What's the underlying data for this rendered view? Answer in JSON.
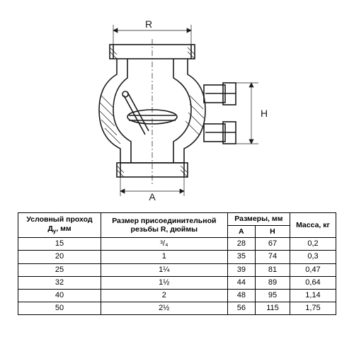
{
  "drawing": {
    "type": "technical-drawing",
    "stroke_color": "#1a1a1a",
    "stroke_width": 1.4,
    "thin_stroke": 0.7,
    "hatch_spacing": 4,
    "letters": {
      "R": "R",
      "H": "H",
      "A": "A"
    },
    "letter_fontsize": 14,
    "background": "#ffffff"
  },
  "table": {
    "type": "table",
    "border_color": "#000000",
    "header_fontsize": 10.5,
    "cell_fontsize": 11,
    "columns": [
      {
        "label_html": "Условный проход<br>Д<sub>у</sub>, мм",
        "width": "22%"
      },
      {
        "label_html": "Размер присоединительной<br>резьбы R, дюймы",
        "width": "28%"
      },
      {
        "label_html": "Размеры, мм",
        "sub": [
          "A",
          "H"
        ],
        "width": "26%"
      },
      {
        "label_html": "Масса, кг",
        "width": "24%"
      }
    ],
    "rows": [
      {
        "d": "15",
        "r": "³/₄",
        "a": "28",
        "h": "67",
        "m": "0,2"
      },
      {
        "d": "20",
        "r": "1",
        "a": "35",
        "h": "74",
        "m": "0,3"
      },
      {
        "d": "25",
        "r": "1¼",
        "a": "39",
        "h": "81",
        "m": "0,47"
      },
      {
        "d": "32",
        "r": "1½",
        "a": "44",
        "h": "89",
        "m": "0,64"
      },
      {
        "d": "40",
        "r": "2",
        "a": "48",
        "h": "95",
        "m": "1,14"
      },
      {
        "d": "50",
        "r": "2½",
        "a": "56",
        "h": "115",
        "m": "1,75"
      }
    ]
  }
}
